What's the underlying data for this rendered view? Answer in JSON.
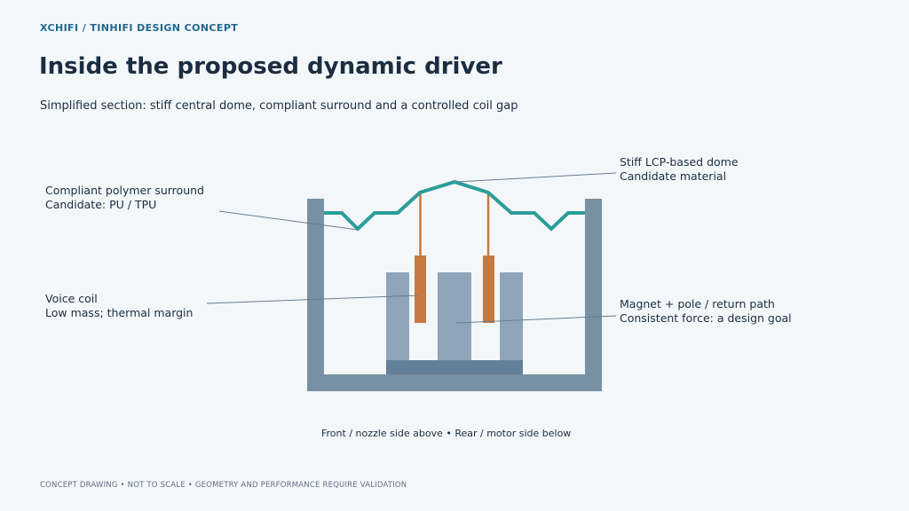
{
  "header": {
    "kicker": "XCHIFI / TINHIFI DESIGN CONCEPT",
    "title": "Inside the proposed dynamic driver",
    "subtitle": "Simplified section: stiff central dome, compliant surround and a controlled coil gap"
  },
  "callouts": {
    "surround": {
      "line1": "Compliant polymer surround",
      "line2": "Candidate: PU / TPU"
    },
    "dome": {
      "line1": "Stiff LCP-based dome",
      "line2": "Candidate material"
    },
    "voice_coil": {
      "line1": "Voice coil",
      "line2": "Low mass; thermal margin"
    },
    "magnet": {
      "line1": "Magnet + pole / return path",
      "line2": "Consistent force: a design goal"
    }
  },
  "caption": "Front / nozzle side above • Rear / motor side below",
  "footer": "CONCEPT DRAWING • NOT TO SCALE • GEOMETRY AND PERFORMANCE REQUIRE VALIDATION",
  "colors": {
    "housing": "#7890a3",
    "magnet": "#8ea5b9",
    "base_plate": "#62809a",
    "diaphragm": "#2a9d99",
    "coil": "#c67a41",
    "leader": "#6b7c8d",
    "accent": "#1f6891"
  }
}
